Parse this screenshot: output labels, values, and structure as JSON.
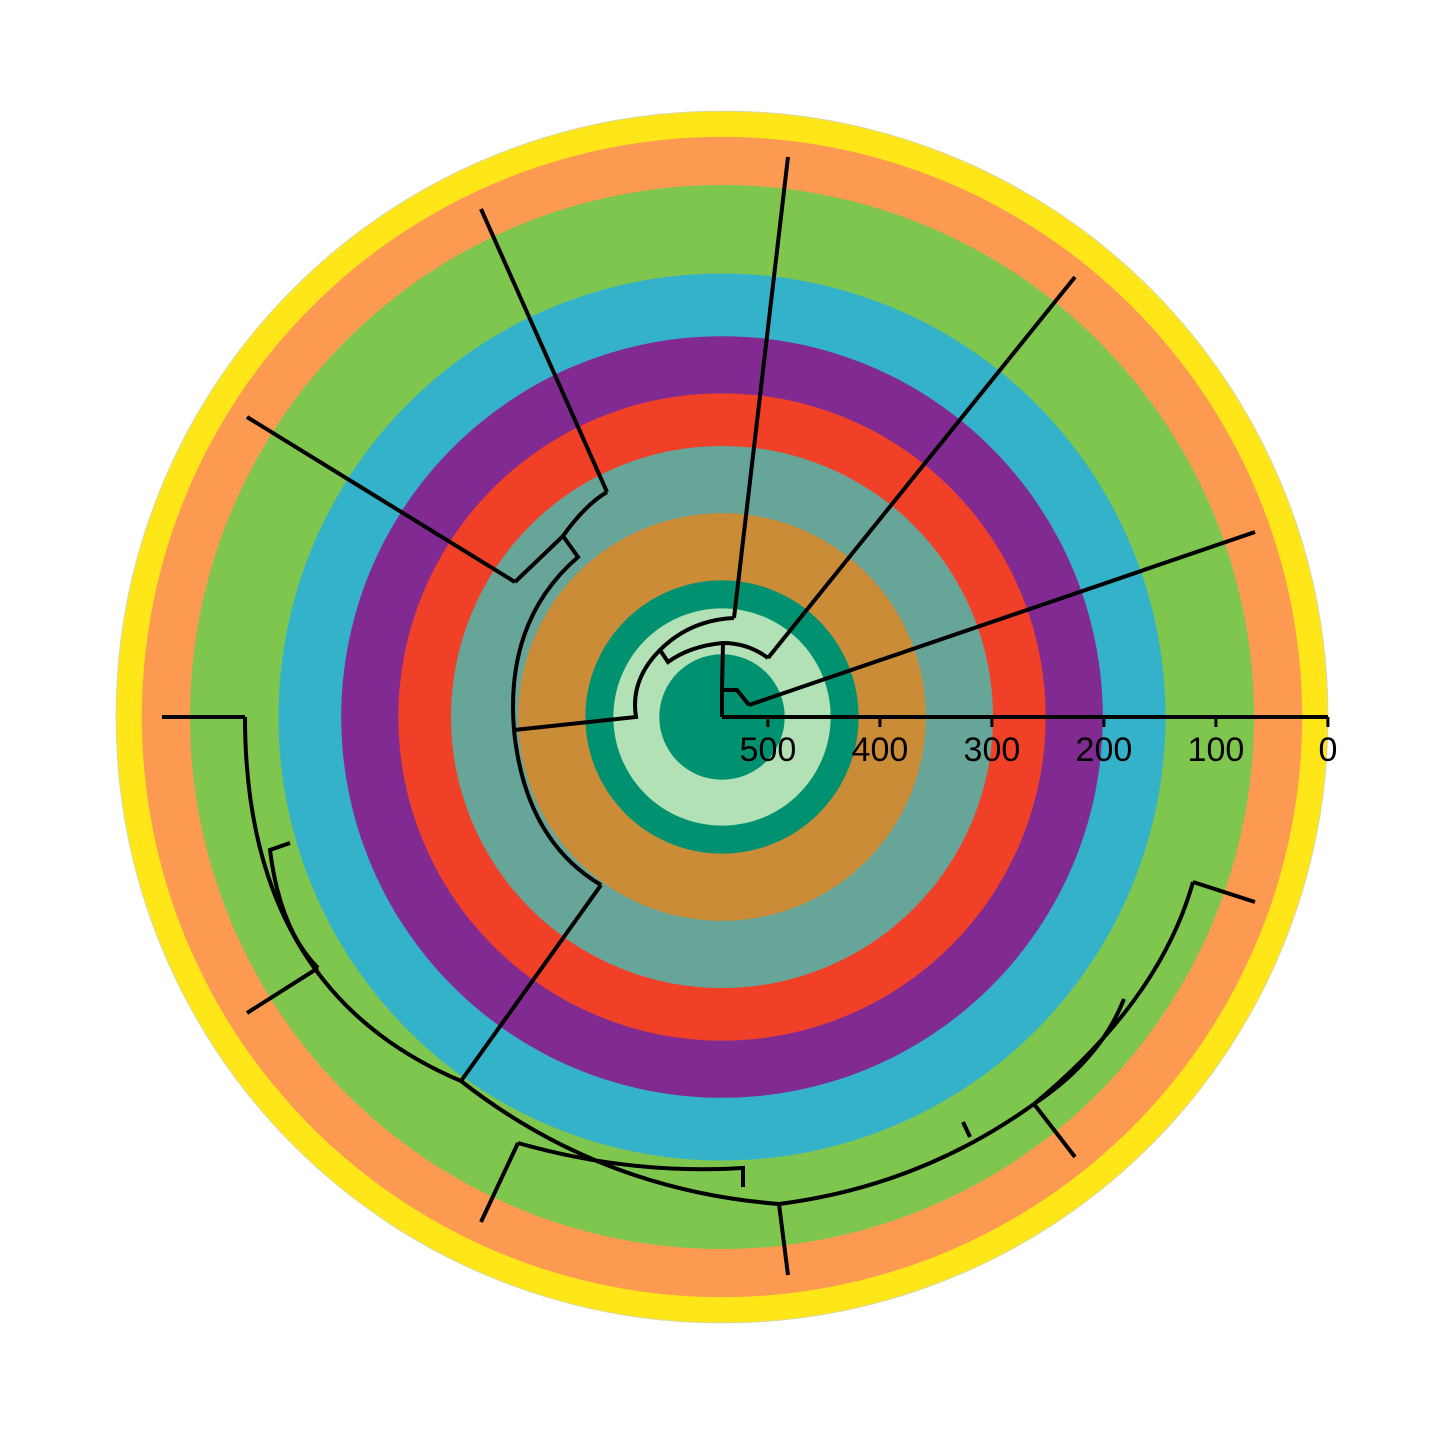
{
  "figure": {
    "type": "circular-timetree",
    "axis": {
      "max_value": 541,
      "ticks": [
        {
          "value": 500,
          "label": "500"
        },
        {
          "value": 400,
          "label": "400"
        },
        {
          "value": 300,
          "label": "300"
        },
        {
          "value": 200,
          "label": "200"
        },
        {
          "value": 100,
          "label": "100"
        },
        {
          "value": 0,
          "label": "0"
        }
      ]
    },
    "time_bands": [
      {
        "from": 541,
        "to": 485,
        "color": "#009270"
      },
      {
        "from": 485,
        "to": 444,
        "color": "#B3E1B6"
      },
      {
        "from": 444,
        "to": 419,
        "color": "#009270"
      },
      {
        "from": 419,
        "to": 359,
        "color": "#CB8C37"
      },
      {
        "from": 359,
        "to": 299,
        "color": "#67A599"
      },
      {
        "from": 299,
        "to": 252,
        "color": "#F04028"
      },
      {
        "from": 252,
        "to": 201,
        "color": "#812B92"
      },
      {
        "from": 201,
        "to": 145,
        "color": "#34B2C9"
      },
      {
        "from": 145,
        "to": 66,
        "color": "#7FC64E"
      },
      {
        "from": 66,
        "to": 23,
        "color": "#FD9A52"
      },
      {
        "from": 23,
        "to": 0,
        "color": "#FFE619"
      }
    ],
    "tree_color": "#000000"
  }
}
